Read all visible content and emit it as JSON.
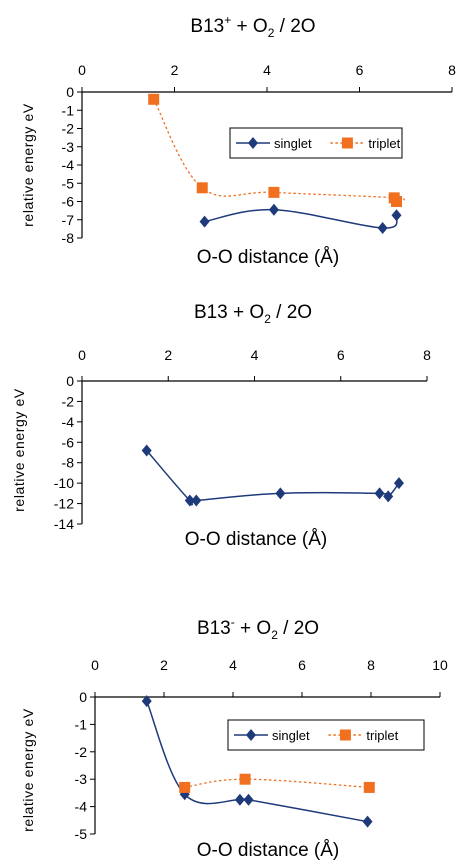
{
  "chart_data": [
    {
      "type": "line",
      "title": {
        "main": "B13",
        "sup": "+",
        "mid": " + O",
        "sub": "2",
        "end": " / 2O"
      },
      "xlabel": "O-O distance (Å)",
      "ylabel": "relative energy  eV",
      "xlim": [
        0,
        8
      ],
      "ylim": [
        -8,
        0
      ],
      "xticks": [
        "0",
        "2",
        "4",
        "6",
        "8"
      ],
      "yticks": [
        "0",
        "-1",
        "-2",
        "-3",
        "-4",
        "-5",
        "-6",
        "-7",
        "-8"
      ],
      "grid": false,
      "legend": "right",
      "series": [
        {
          "name": "singlet",
          "color": "#1f3a7a",
          "marker": "diamond",
          "line": "solid",
          "points": [
            [
              2.65,
              -7.1
            ],
            [
              4.15,
              -6.45
            ],
            [
              6.5,
              -7.45
            ],
            [
              6.8,
              -6.75
            ]
          ]
        },
        {
          "name": "triplet",
          "color": "#f07020",
          "marker": "square",
          "line": "dotted",
          "points": [
            [
              1.55,
              -0.4
            ],
            [
              2.6,
              -5.25
            ],
            [
              4.15,
              -5.5
            ],
            [
              6.75,
              -5.8
            ],
            [
              6.8,
              -6.0
            ]
          ]
        }
      ]
    },
    {
      "type": "line",
      "title": {
        "main": "B13",
        "sup": "",
        "mid": "  +  O",
        "sub": "2",
        "end": " / 2O"
      },
      "xlabel": "O-O distance (Å)",
      "ylabel": "relative energy eV",
      "xlim": [
        0,
        8
      ],
      "ylim": [
        -14,
        0
      ],
      "xticks": [
        "0",
        "2",
        "4",
        "6",
        "8"
      ],
      "yticks": [
        "0",
        "-2",
        "-4",
        "-6",
        "-8",
        "-10",
        "-12",
        "-14"
      ],
      "grid": false,
      "series": [
        {
          "name": "",
          "color": "#1f3a7a",
          "marker": "diamond",
          "line": "solid",
          "points": [
            [
              1.5,
              -6.8
            ],
            [
              2.5,
              -11.7
            ],
            [
              2.65,
              -11.7
            ],
            [
              4.6,
              -11.0
            ],
            [
              6.9,
              -11.0
            ],
            [
              7.1,
              -11.3
            ],
            [
              7.35,
              -10.0
            ]
          ]
        }
      ]
    },
    {
      "type": "line",
      "title": {
        "main": "B13",
        "sup": "-",
        "mid": "  +  O",
        "sub": "2",
        "end": " / 2O"
      },
      "xlabel": "O-O distance (Å)",
      "ylabel": "relative energy eV",
      "xlim": [
        0,
        10
      ],
      "ylim": [
        -5,
        0
      ],
      "xticks": [
        "0",
        "2",
        "4",
        "6",
        "8",
        "10"
      ],
      "yticks": [
        "0",
        "-1",
        "-2",
        "-3",
        "-4",
        "-5"
      ],
      "grid": false,
      "legend": "right",
      "series": [
        {
          "name": "singlet",
          "color": "#1f3a7a",
          "marker": "diamond",
          "line": "solid",
          "points": [
            [
              1.5,
              -0.15
            ],
            [
              2.6,
              -3.55
            ],
            [
              4.2,
              -3.75
            ],
            [
              4.45,
              -3.75
            ],
            [
              7.9,
              -4.55
            ]
          ]
        },
        {
          "name": "triplet",
          "color": "#f07020",
          "marker": "square",
          "line": "dotted",
          "points": [
            [
              2.6,
              -3.3
            ],
            [
              4.35,
              -3.0
            ],
            [
              7.95,
              -3.3
            ]
          ]
        }
      ]
    }
  ]
}
